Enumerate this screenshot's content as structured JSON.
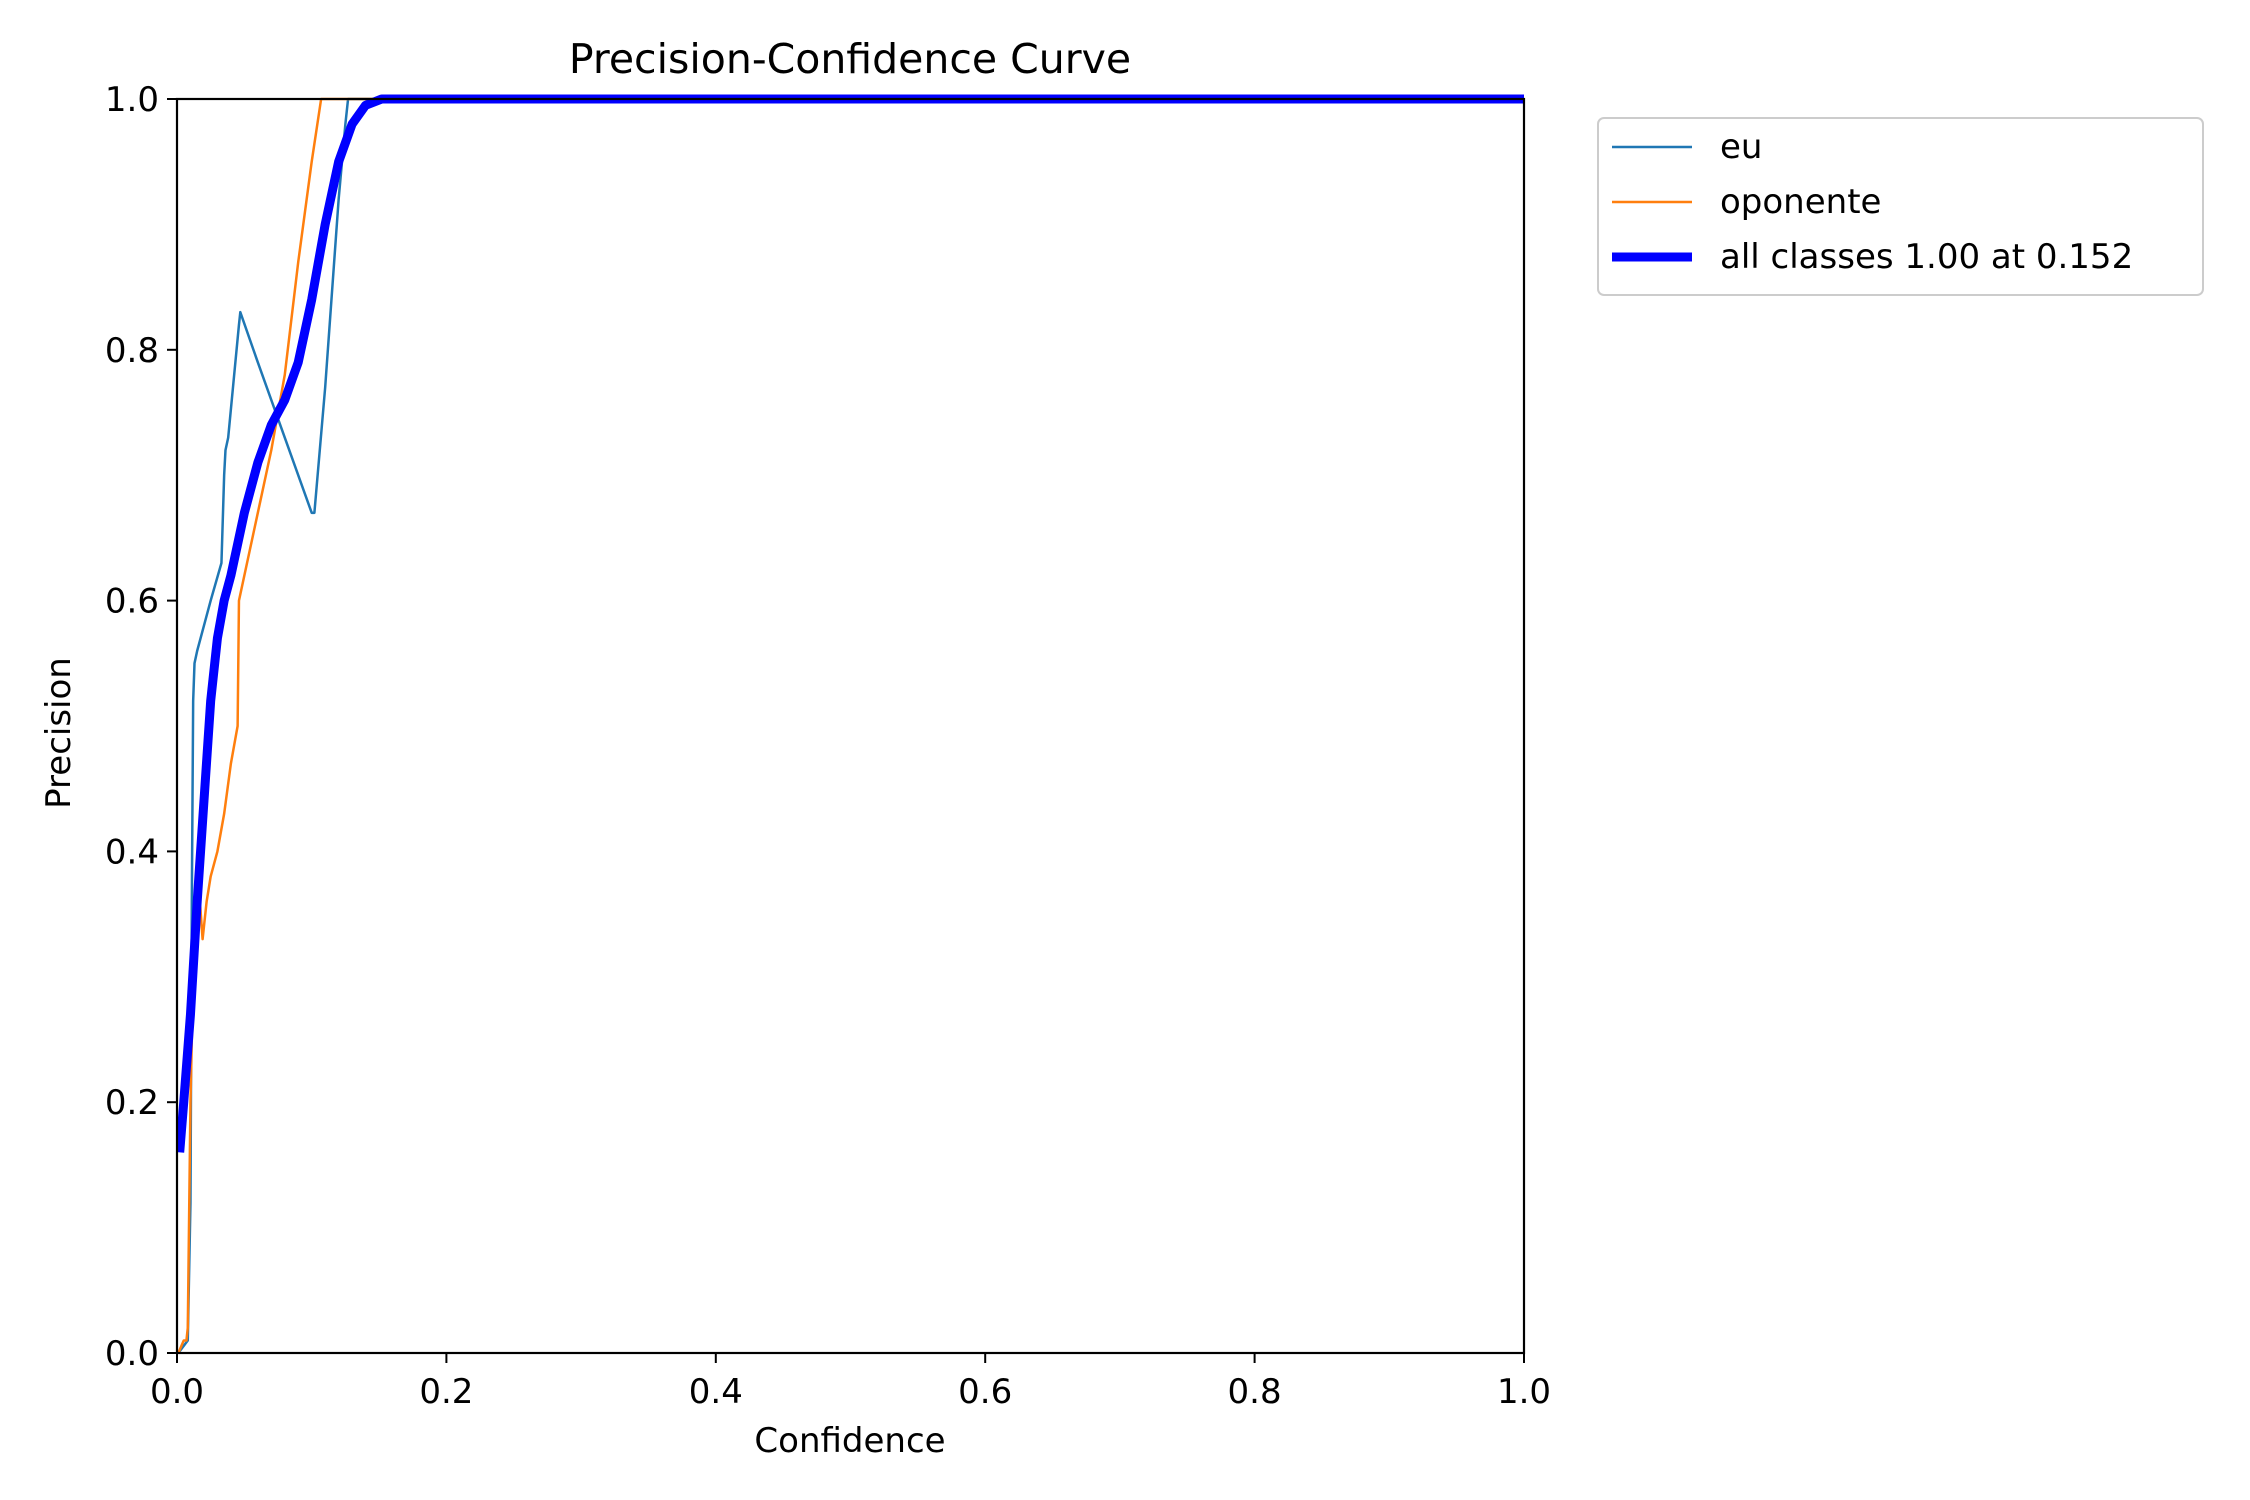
{
  "chart_data": {
    "type": "line",
    "title": "Precision-Confidence Curve",
    "xlabel": "Confidence",
    "ylabel": "Precision",
    "xlim": [
      0,
      1
    ],
    "ylim": [
      0,
      1
    ],
    "xticks": [
      "0.0",
      "0.2",
      "0.4",
      "0.6",
      "0.8",
      "1.0"
    ],
    "yticks": [
      "0.0",
      "0.2",
      "0.4",
      "0.6",
      "0.8",
      "1.0"
    ],
    "grid": false,
    "legend_position": "outside-top-right",
    "series": [
      {
        "name": "eu",
        "color": "#1f77b4",
        "width": "thin",
        "x": [
          0.001,
          0.008,
          0.01,
          0.011,
          0.012,
          0.013,
          0.015,
          0.02,
          0.025,
          0.033,
          0.035,
          0.036,
          0.038,
          0.046,
          0.047,
          0.06,
          0.08,
          0.1,
          0.102,
          0.11,
          0.12,
          0.125,
          0.127,
          0.13,
          1.0
        ],
        "y": [
          0.0,
          0.01,
          0.12,
          0.36,
          0.52,
          0.55,
          0.56,
          0.58,
          0.6,
          0.63,
          0.7,
          0.72,
          0.73,
          0.82,
          0.83,
          0.79,
          0.73,
          0.67,
          0.67,
          0.77,
          0.92,
          0.98,
          1.0,
          1.0,
          1.0
        ]
      },
      {
        "name": "oponente",
        "color": "#ff7f0e",
        "width": "thin",
        "x": [
          0.001,
          0.005,
          0.007,
          0.008,
          0.01,
          0.012,
          0.014,
          0.016,
          0.019,
          0.02,
          0.022,
          0.025,
          0.03,
          0.035,
          0.04,
          0.045,
          0.046,
          0.05,
          0.06,
          0.07,
          0.08,
          0.09,
          0.1,
          0.107,
          1.0
        ],
        "y": [
          0.0,
          0.01,
          0.01,
          0.02,
          0.2,
          0.3,
          0.37,
          0.375,
          0.33,
          0.34,
          0.36,
          0.38,
          0.4,
          0.43,
          0.47,
          0.5,
          0.6,
          0.62,
          0.67,
          0.72,
          0.78,
          0.87,
          0.95,
          1.0,
          1.0
        ]
      },
      {
        "name": "all classes 1.00 at 0.152",
        "color": "#0000ff",
        "width": "thick",
        "x": [
          0.002,
          0.005,
          0.01,
          0.015,
          0.02,
          0.025,
          0.03,
          0.035,
          0.04,
          0.05,
          0.06,
          0.07,
          0.08,
          0.09,
          0.1,
          0.11,
          0.12,
          0.13,
          0.14,
          0.152,
          1.0
        ],
        "y": [
          0.16,
          0.2,
          0.27,
          0.36,
          0.44,
          0.52,
          0.57,
          0.6,
          0.62,
          0.67,
          0.71,
          0.74,
          0.76,
          0.79,
          0.84,
          0.9,
          0.95,
          0.98,
          0.995,
          1.0,
          1.0
        ]
      }
    ]
  }
}
